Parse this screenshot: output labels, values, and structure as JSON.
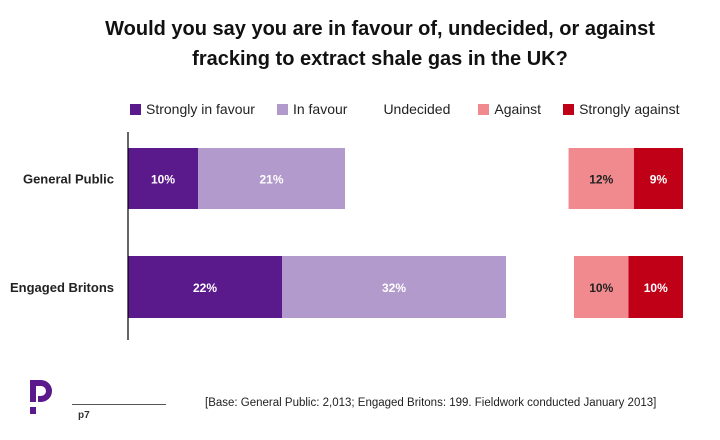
{
  "title_line1": "Would you say you are in favour of, undecided, or against",
  "title_line2": "fracking to extract shale gas in the UK?",
  "legend": [
    {
      "label": "Strongly in favour",
      "color": "#5b1a8c"
    },
    {
      "label": "In favour",
      "color": "#b29acc"
    },
    {
      "label": "Undecided",
      "color": ""
    },
    {
      "label": "Against",
      "color": "#f08a8f"
    },
    {
      "label": "Strongly against",
      "color": "#c00016"
    }
  ],
  "chart_data": {
    "type": "bar",
    "orientation": "horizontal-diverging",
    "title": "Would you say you are in favour of, undecided, or against fracking to extract shale gas in the UK?",
    "categories": [
      "General Public",
      "Engaged Britons"
    ],
    "series": [
      {
        "name": "Strongly in favour",
        "values": [
          10,
          22
        ],
        "labels": [
          "10%",
          "22%"
        ],
        "color": "#5b1a8c",
        "side": "left"
      },
      {
        "name": "In favour",
        "values": [
          21,
          32
        ],
        "labels": [
          "21%",
          "32%"
        ],
        "color": "#b29acc",
        "side": "left"
      },
      {
        "name": "Undecided",
        "values": [
          null,
          null
        ],
        "labels": [
          "",
          ""
        ],
        "color": "",
        "side": "middle"
      },
      {
        "name": "Against",
        "values": [
          12,
          10
        ],
        "labels": [
          "12%",
          "10%"
        ],
        "color": "#f08a8f",
        "side": "right"
      },
      {
        "name": "Strongly against",
        "values": [
          9,
          10
        ],
        "labels": [
          "9%",
          "10%"
        ],
        "color": "#c00016",
        "side": "right"
      }
    ],
    "legend_position": "top",
    "grid": false
  },
  "footer": {
    "page": "p7",
    "base_note": "[Base: General Public: 2,013; Engaged Britons: 199. Fieldwork conducted January 2013]"
  },
  "logo": {
    "icon": "populus-p-logo",
    "color": "#5b1a8c"
  }
}
